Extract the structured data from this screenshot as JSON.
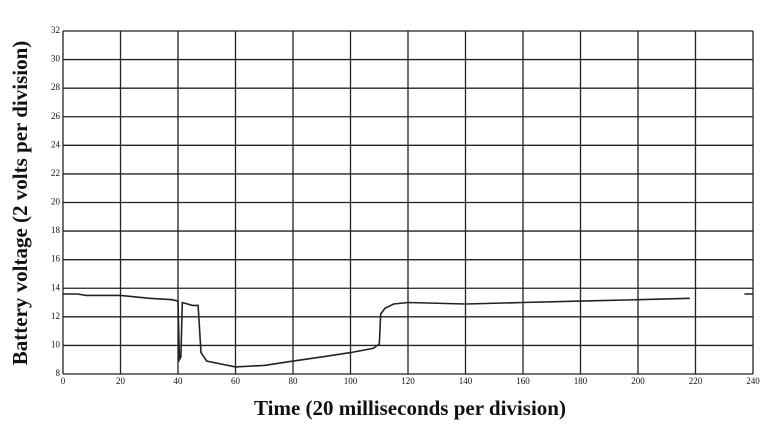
{
  "chart_data": {
    "type": "line",
    "x_label": "Time (20 milliseconds per division)",
    "y_label": "Battery voltage (2 volts per division)",
    "x": [
      0,
      5,
      8,
      10,
      20,
      30,
      38,
      40,
      40.5,
      41,
      41.5,
      45,
      47,
      48,
      50,
      55,
      60,
      70,
      80,
      90,
      100,
      108,
      110,
      110.5,
      112,
      115,
      120,
      140,
      160,
      180,
      200,
      218,
      220,
      237,
      240
    ],
    "series": [
      {
        "name": "Battery voltage",
        "color": "#222222",
        "values": [
          13.6,
          13.6,
          13.5,
          13.5,
          13.5,
          13.3,
          13.2,
          13.1,
          9.0,
          9.2,
          13.0,
          12.8,
          12.8,
          9.5,
          8.9,
          8.7,
          8.5,
          8.6,
          8.9,
          9.2,
          9.5,
          9.8,
          10.1,
          12.2,
          12.6,
          12.9,
          13.0,
          12.9,
          13.0,
          13.1,
          13.2,
          13.3,
          null,
          13.6,
          13.6
        ]
      }
    ],
    "xlim": [
      0,
      240
    ],
    "xticks": [
      0,
      20,
      40,
      60,
      80,
      100,
      120,
      140,
      160,
      180,
      200,
      220,
      240
    ],
    "ylim": [
      8,
      32
    ],
    "yticks": [
      8,
      10,
      12,
      14,
      16,
      18,
      20,
      22,
      24,
      26,
      28,
      30,
      32
    ],
    "grid": true
  }
}
